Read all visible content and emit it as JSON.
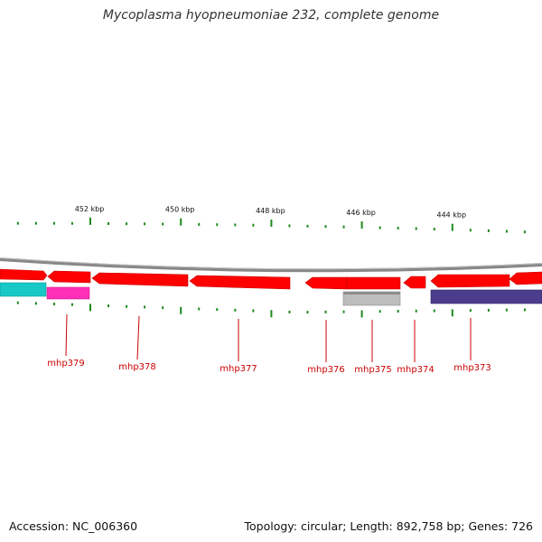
{
  "title": "Mycoplasma hyopneumoniae 232, complete genome",
  "footer": {
    "accession": "Accession: NC_006360",
    "summary": "Topology: circular; Length: 892,758 bp; Genes: 726"
  },
  "colors": {
    "backbone": "#8a8a8a",
    "tick": "#1f8a1f",
    "gene_red": "#ff0000",
    "gene_red_dark": "#c80000",
    "cyan": "#18c8c8",
    "magenta": "#ff2fb8",
    "gray_feature": "#b8b8b8",
    "purple_feature": "#4b3c8c",
    "label": "#cc0000"
  },
  "scale": {
    "unit": "kbp",
    "major_ticks": [
      {
        "label": "452 kbp",
        "kbp": 452
      },
      {
        "label": "450 kbp",
        "kbp": 450
      },
      {
        "label": "448 kbp",
        "kbp": 448
      },
      {
        "label": "446 kbp",
        "kbp": 446
      },
      {
        "label": "444 kbp",
        "kbp": 444
      }
    ]
  },
  "genes": [
    {
      "name": "mhp379"
    },
    {
      "name": "mhp378"
    },
    {
      "name": "mhp377"
    },
    {
      "name": "mhp376"
    },
    {
      "name": "mhp375"
    },
    {
      "name": "mhp374"
    },
    {
      "name": "mhp373"
    }
  ]
}
